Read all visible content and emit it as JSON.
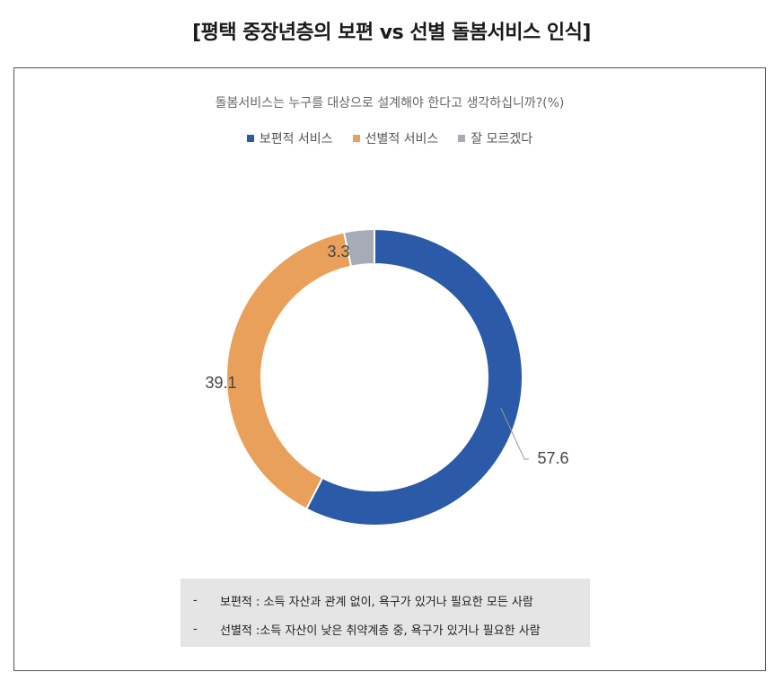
{
  "header": {
    "title": "[평택 중장년층의 보편 vs 선별 돌봄서비스 인식]"
  },
  "chart_data": {
    "type": "pie",
    "subtitle": "돌봄서비스는 누구를 대상으로 설계해야 한다고 생각하십니까?(%)",
    "categories": [
      "보편적 서비스",
      "선별적 서비스",
      "잘 모르겠다"
    ],
    "values": [
      57.6,
      39.1,
      3.3
    ],
    "value_labels": [
      "57.6",
      "39.1",
      "3.3"
    ],
    "colors": [
      "#2b5aa8",
      "#e8a05a",
      "#a6acb6"
    ],
    "donut": true,
    "legend_position": "top-center"
  },
  "notes": [
    {
      "dash": "-",
      "text": "보편적 : 소득 자산과 관계 없이, 욕구가 있거나 필요한 모든 사람"
    },
    {
      "dash": "-",
      "text": "선별적 :소득 자산이 낮은 취약계층 중, 욕구가 있거나 필요한 사람"
    }
  ]
}
